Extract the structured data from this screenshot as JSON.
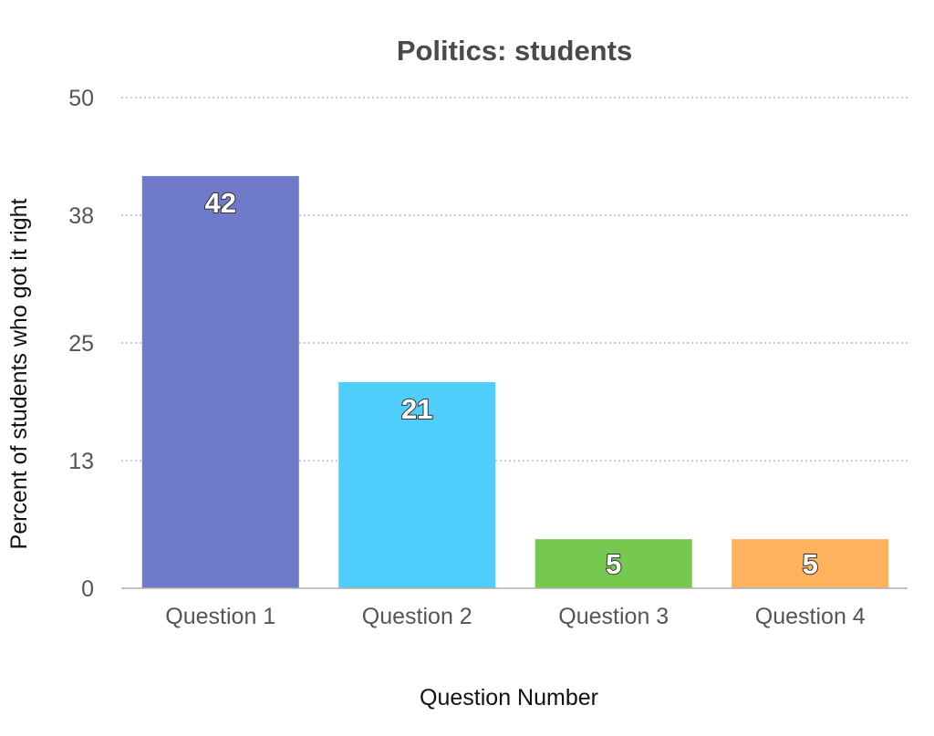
{
  "chart_data": {
    "type": "bar",
    "title": "Politics: students",
    "xlabel": "Question Number",
    "ylabel": "Percent of students who got it right",
    "categories": [
      "Question 1",
      "Question 2",
      "Question 3",
      "Question 4"
    ],
    "values": [
      42,
      21,
      5,
      5
    ],
    "data_labels": [
      "42",
      "21",
      "5",
      "5"
    ],
    "colors": [
      "#6f7ac9",
      "#4fcdfb",
      "#77c84e",
      "#fdb25d"
    ],
    "ylim": [
      0,
      50
    ],
    "yticks": [
      0,
      13,
      25,
      38,
      50
    ],
    "ytick_labels": [
      "0",
      "13",
      "25",
      "38",
      "50"
    ],
    "grid": true
  }
}
